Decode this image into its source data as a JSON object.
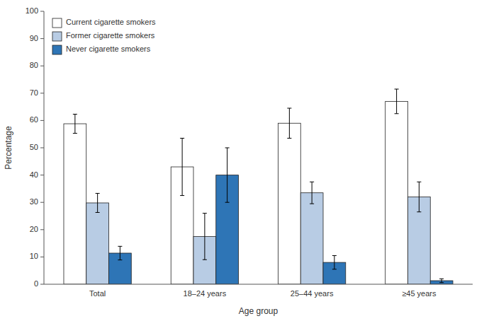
{
  "chart_data": {
    "type": "bar",
    "categories": [
      "Total",
      "18–24 years",
      "25–44 years",
      "≥45 years"
    ],
    "series": [
      {
        "name": "Current cigarette smokers",
        "color": "#ffffff",
        "values": [
          58.8,
          43.0,
          59.0,
          67.0
        ],
        "errors": [
          3.5,
          10.5,
          5.5,
          4.5
        ]
      },
      {
        "name": "Former cigarette smokers",
        "color": "#b8cce4",
        "values": [
          29.8,
          17.5,
          33.5,
          32.0
        ],
        "errors": [
          3.5,
          8.5,
          4.0,
          5.5
        ]
      },
      {
        "name": "Never cigarette smokers",
        "color": "#2e75b6",
        "values": [
          11.4,
          40.0,
          8.0,
          1.3
        ],
        "errors": [
          2.5,
          10.0,
          2.5,
          0.7
        ]
      }
    ],
    "xlabel": "Age group",
    "ylabel": "Percentage",
    "ylim": [
      0,
      100
    ],
    "yticks": [
      0,
      10,
      20,
      30,
      40,
      50,
      60,
      70,
      80,
      90,
      100
    ],
    "grid": false,
    "legend": "upper left"
  }
}
